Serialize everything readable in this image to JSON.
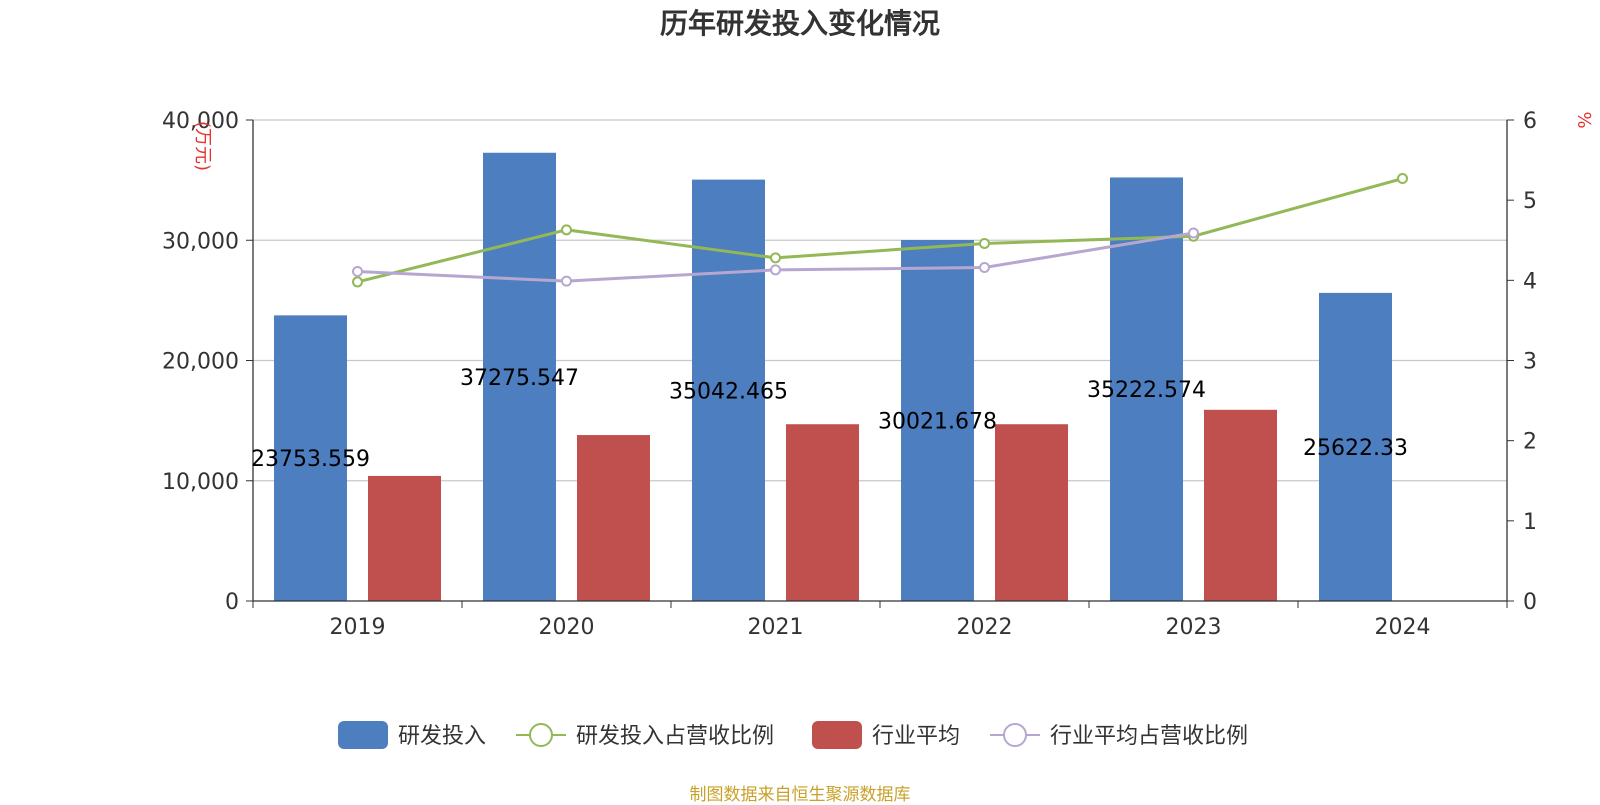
{
  "chart_data": {
    "type": "bar",
    "title": "历年研发投入变化情况",
    "source": "制图数据来自恒生聚源数据库",
    "categories": [
      "2019",
      "2020",
      "2021",
      "2022",
      "2023",
      "2024"
    ],
    "y_left": {
      "unit": "万元",
      "min": 0,
      "max": 40000,
      "ticks": [
        "0",
        "10,000",
        "20,000",
        "30,000",
        "40,000"
      ]
    },
    "y_right": {
      "unit": "%",
      "min": 0,
      "max": 6,
      "ticks": [
        "0",
        "1",
        "2",
        "3",
        "4",
        "5",
        "6"
      ]
    },
    "grid": true,
    "legend_position": "bottom",
    "series": [
      {
        "name": "研发投入",
        "kind": "bar",
        "axis": "left",
        "color": "#4d7ebf",
        "values": [
          23753.559,
          37275.547,
          35042.465,
          30021.678,
          35222.574,
          25622.33
        ],
        "labels": [
          "23753.559",
          "37275.547",
          "35042.465",
          "30021.678",
          "35222.574",
          "25622.33"
        ]
      },
      {
        "name": "研发投入占营收比例",
        "kind": "line",
        "axis": "right",
        "color": "#93b856",
        "values": [
          3.98,
          4.63,
          4.28,
          4.46,
          4.55,
          5.27
        ]
      },
      {
        "name": "行业平均",
        "kind": "bar",
        "axis": "left",
        "color": "#c0504d",
        "values": [
          10400,
          13800,
          14700,
          14700,
          15900,
          null
        ]
      },
      {
        "name": "行业平均占营收比例",
        "kind": "line",
        "axis": "right",
        "color": "#b6a7d1",
        "values": [
          4.11,
          3.99,
          4.13,
          4.16,
          4.59,
          null
        ]
      }
    ]
  }
}
